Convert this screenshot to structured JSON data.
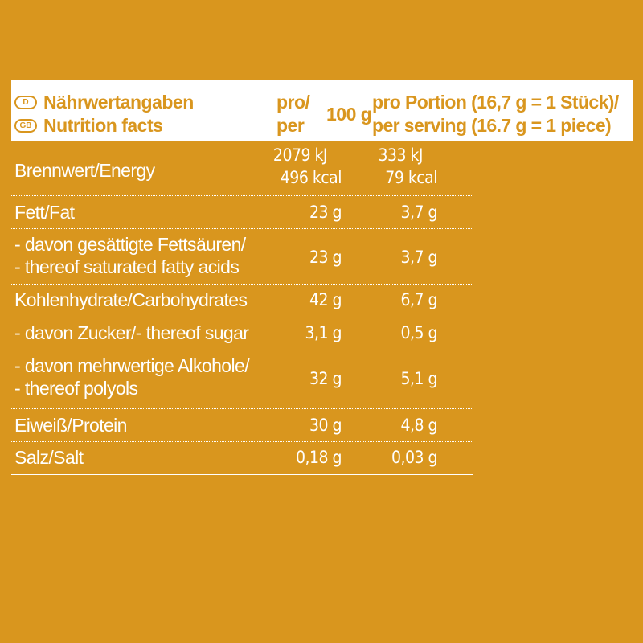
{
  "header": {
    "lang_de_badge": "D",
    "lang_gb_badge": "GB",
    "title_de": "Nährwertangaben",
    "title_en": "Nutrition facts",
    "per100_line1": "pro/",
    "per100_line2": "per",
    "per100_unit": "100 g",
    "serving_line1": "pro Portion (16,7 g = 1 Stück)/",
    "serving_line2": "per serving (16.7 g = 1 piece)"
  },
  "rows": [
    {
      "label": [
        "Brennwert/Energy"
      ],
      "per100": [
        "2079 kJ",
        "496 kcal"
      ],
      "serving": [
        "333 kJ",
        "79 kcal"
      ]
    },
    {
      "label": [
        "Fett/Fat"
      ],
      "per100": [
        "23 g"
      ],
      "serving": [
        "3,7 g"
      ]
    },
    {
      "label": [
        "- davon gesättigte Fettsäuren/",
        "- thereof saturated fatty acids"
      ],
      "per100": [
        "23 g"
      ],
      "serving": [
        "3,7 g"
      ]
    },
    {
      "label": [
        "Kohlenhydrate/Carbohydrates"
      ],
      "per100": [
        "42 g"
      ],
      "serving": [
        "6,7 g"
      ]
    },
    {
      "label": [
        "- davon Zucker/- thereof sugar"
      ],
      "per100": [
        "3,1 g"
      ],
      "serving": [
        "0,5 g"
      ]
    },
    {
      "label": [
        "- davon mehrwertige Alkohole/",
        "- thereof polyols"
      ],
      "per100": [
        "32 g"
      ],
      "serving": [
        "5,1 g"
      ]
    },
    {
      "label": [
        "Eiweiß/Protein"
      ],
      "per100": [
        "30 g"
      ],
      "serving": [
        "4,8 g"
      ]
    },
    {
      "label": [
        "Salz/Salt"
      ],
      "per100": [
        "0,18 g"
      ],
      "serving": [
        "0,03 g"
      ]
    }
  ],
  "colors": {
    "background": "#D9961E",
    "header_bg": "#FFFFFF",
    "text": "#FFFFFF"
  }
}
